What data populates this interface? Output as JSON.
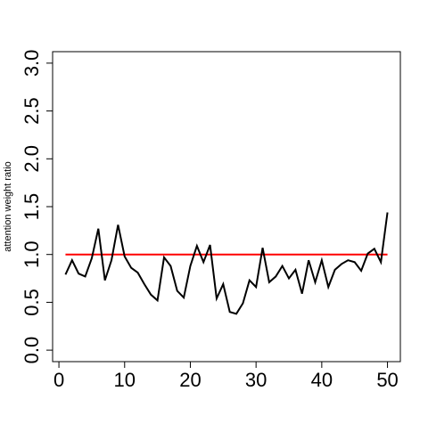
{
  "chart_data": {
    "type": "line",
    "y_label": "attention weight ratio",
    "x": [
      1,
      2,
      3,
      4,
      5,
      6,
      7,
      8,
      9,
      10,
      11,
      12,
      13,
      14,
      15,
      16,
      17,
      18,
      19,
      20,
      21,
      22,
      23,
      24,
      25,
      26,
      27,
      28,
      29,
      30,
      31,
      32,
      33,
      34,
      35,
      36,
      37,
      38,
      39,
      40,
      41,
      42,
      43,
      44,
      45,
      46,
      47,
      48,
      49,
      50
    ],
    "series": [
      {
        "color": "#000000",
        "values": [
          0.79,
          0.94,
          0.8,
          0.77,
          0.96,
          1.27,
          0.73,
          0.94,
          1.31,
          0.98,
          0.86,
          0.81,
          0.69,
          0.58,
          0.52,
          0.97,
          0.88,
          0.62,
          0.55,
          0.88,
          1.09,
          0.92,
          1.1,
          0.54,
          0.69,
          0.4,
          0.38,
          0.49,
          0.73,
          0.66,
          1.07,
          0.71,
          0.77,
          0.88,
          0.75,
          0.84,
          0.59,
          0.94,
          0.71,
          0.94,
          0.66,
          0.84,
          0.9,
          0.94,
          0.92,
          0.83,
          1.01,
          1.06,
          0.92,
          1.44
        ]
      }
    ],
    "reference_line": {
      "x": [
        1,
        50
      ],
      "values": [
        1,
        1
      ],
      "color": "#ff0000"
    },
    "xlim": [
      -0.96,
      51.96
    ],
    "ylim": [
      -0.12,
      3.12
    ],
    "xticks": [
      0,
      10,
      20,
      30,
      40,
      50
    ],
    "yticks": [
      {
        "value": 0,
        "label": "0.0"
      },
      {
        "value": 0.5,
        "label": "0.5"
      },
      {
        "value": 1,
        "label": "1.0"
      },
      {
        "value": 1.5,
        "label": "1.5"
      },
      {
        "value": 2,
        "label": "2.0"
      },
      {
        "value": 2.5,
        "label": "2.5"
      },
      {
        "value": 3,
        "label": "3.0"
      }
    ]
  }
}
